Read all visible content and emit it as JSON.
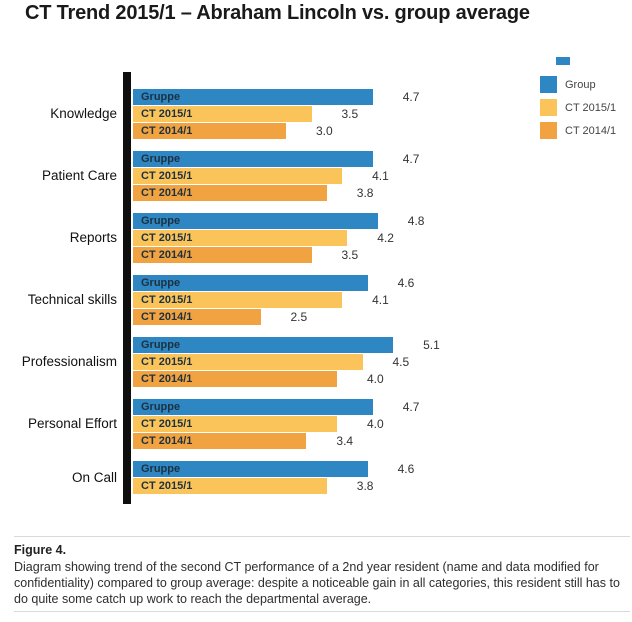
{
  "title": "CT Trend 2015/1 – Abraham Lincoln vs. group average",
  "colors": {
    "group_blue": "#2E86C3",
    "ct2015_light_orange": "#FBC45A",
    "ct2014_orange": "#F2A341",
    "axis_black": "#0e0e0e"
  },
  "chart_data": {
    "type": "bar",
    "orientation": "horizontal",
    "title": "CT Trend 2015/1 – Abraham Lincoln vs. group average",
    "xlabel": "",
    "ylabel": "",
    "xlim": [
      0,
      6
    ],
    "grid": false,
    "legend_position": "top-right",
    "value_labels_shown": true,
    "categories": [
      "Knowledge",
      "Patient Care",
      "Reports",
      "Technical skills",
      "Professionalism",
      "Personal Effort",
      "On Call"
    ],
    "series": [
      {
        "name": "Group",
        "bar_label": "Gruppe",
        "color": "#2E86C3",
        "values": [
          4.7,
          4.7,
          4.8,
          4.6,
          5.1,
          4.7,
          4.6
        ]
      },
      {
        "name": "CT 2015/1",
        "bar_label": "CT 2015/1",
        "color": "#FBC45A",
        "values": [
          3.5,
          4.1,
          4.2,
          4.1,
          4.5,
          4.0,
          3.8
        ]
      },
      {
        "name": "CT 2014/1",
        "bar_label": "CT 2014/1",
        "color": "#F2A341",
        "values": [
          3.0,
          3.8,
          3.5,
          2.5,
          4.0,
          3.4,
          null
        ]
      }
    ]
  },
  "legend": {
    "items": [
      {
        "label": "Group",
        "color": "#2E86C3"
      },
      {
        "label": "CT 2015/1",
        "color": "#FBC45A"
      },
      {
        "label": "CT 2014/1",
        "color": "#F2A341"
      }
    ]
  },
  "caption": {
    "label": "Figure 4.",
    "text": "Diagram showing trend of the second CT performance of a 2nd year resident (name and data modified for confidentiality) compared to group average: despite a noticeable gain in all categories, this resident still has to do quite some catch up work to reach the departmental average."
  }
}
